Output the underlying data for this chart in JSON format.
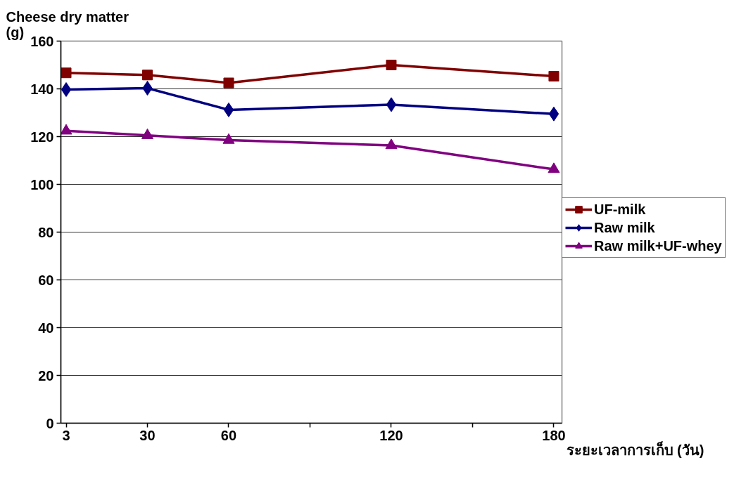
{
  "chart_data": {
    "type": "line",
    "xlabel": "ระยะเวลาการเก็บ (วัน)",
    "ylabel": "Cheese dry matter (g)",
    "categories": [
      "3",
      "30",
      "60",
      null,
      "120",
      null,
      "180"
    ],
    "ylim": [
      0,
      160
    ],
    "yticks": [
      0,
      20,
      40,
      60,
      80,
      100,
      120,
      140,
      160
    ],
    "grid": "y",
    "legend": "right",
    "line_style": "solid",
    "series": [
      {
        "name": "UF-milk",
        "color": "#800000",
        "marker": "square",
        "x": [
          "3",
          "30",
          "60",
          "120",
          "180"
        ],
        "values": [
          146.7,
          145.8,
          142.5,
          150,
          145.3
        ]
      },
      {
        "name": "Raw milk",
        "color": "#000080",
        "marker": "diamond",
        "x": [
          "3",
          "30",
          "60",
          "120",
          "180"
        ],
        "values": [
          139.7,
          140.3,
          131.2,
          133.4,
          129.5
        ]
      },
      {
        "name": "Raw milk+UF-whey",
        "color": "#800080",
        "marker": "triangle",
        "x": [
          "3",
          "30",
          "60",
          "120",
          "180"
        ],
        "values": [
          122.4,
          120.5,
          118.5,
          116.3,
          106.3
        ]
      }
    ]
  }
}
